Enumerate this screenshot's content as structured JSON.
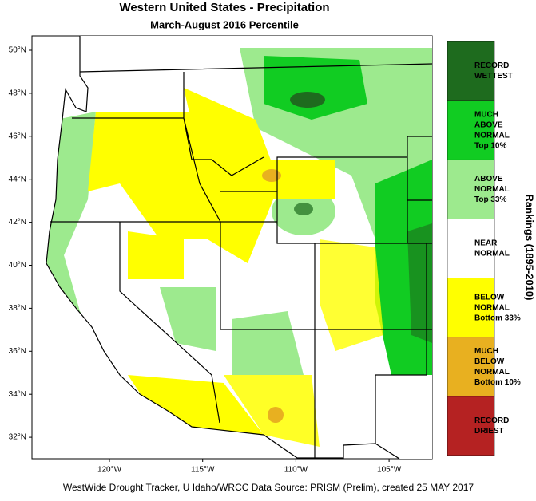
{
  "header": {
    "title": "Western United States - Precipitation",
    "subtitle": "March-August 2016 Percentile"
  },
  "map": {
    "lat_labels": [
      "50°N",
      "48°N",
      "46°N",
      "44°N",
      "42°N",
      "40°N",
      "38°N",
      "36°N",
      "34°N",
      "32°N"
    ],
    "lon_labels": [
      "120°W",
      "115°W",
      "110°W",
      "105°W"
    ]
  },
  "legend": {
    "title": "Rankings (1895-2010)",
    "items": [
      {
        "lines": [
          "RECORD",
          "WETTEST"
        ],
        "color": "#1e6b1e"
      },
      {
        "lines": [
          "MUCH",
          "ABOVE",
          "NORMAL",
          "Top 10%"
        ],
        "color": "#11cc22"
      },
      {
        "lines": [
          "ABOVE",
          "NORMAL",
          "Top 33%"
        ],
        "color": "#9dea8e"
      },
      {
        "lines": [
          "NEAR",
          "NORMAL"
        ],
        "color": "#ffffff"
      },
      {
        "lines": [
          "BELOW",
          "NORMAL",
          "Bottom 33%"
        ],
        "color": "#ffff00"
      },
      {
        "lines": [
          "MUCH",
          "BELOW",
          "NORMAL",
          "Bottom 10%"
        ],
        "color": "#e8b020"
      },
      {
        "lines": [
          "RECORD",
          "DRIEST"
        ],
        "color": "#b52222"
      }
    ]
  },
  "footer": "WestWide Drought Tracker, U Idaho/WRCC Data Source: PRISM (Prelim), created 25 MAY 2017"
}
